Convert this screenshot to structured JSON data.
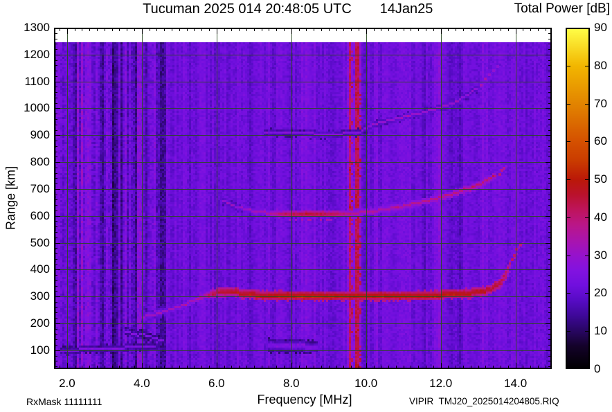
{
  "header": {
    "title": "Tucuman 2025 014 20:48:05 UTC",
    "date_label": "14Jan25",
    "colorbar_title": "Total Power [dB]"
  },
  "footer": {
    "rx_mask": "RxMask 11111111",
    "file_label": "VIPIR  TMJ20_2025014204805.RIQ"
  },
  "chart_data": {
    "type": "heatmap",
    "title": "Tucuman 2025 014 20:48:05 UTC  14Jan25",
    "xlabel": "Frequency [MHz]",
    "ylabel": "Range [km]",
    "colorbar_label": "Total Power [dB]",
    "xlim": [
      1.65,
      14.97
    ],
    "ylim": [
      30,
      1300
    ],
    "x_major_ticks": [
      2,
      4,
      6,
      8,
      10,
      12,
      14
    ],
    "x_tick_labels": [
      "2.0",
      "4.0",
      "6.0",
      "8.0",
      "10.0",
      "12.0",
      "14.0"
    ],
    "x_minor_step": 0.2,
    "y_major_ticks": [
      100,
      200,
      300,
      400,
      500,
      600,
      700,
      800,
      900,
      1000,
      1100,
      1200,
      1300
    ],
    "y_tick_labels": [
      "100",
      "200",
      "300",
      "400",
      "500",
      "600",
      "700",
      "800",
      "900",
      "1000",
      "1100",
      "1200",
      "1300"
    ],
    "y_minor_step": 20,
    "grid": true,
    "grid_color": "#2a4a22",
    "data_top_km": 1245,
    "colorbar": {
      "lim": [
        0,
        90
      ],
      "ticks": [
        0,
        10,
        20,
        30,
        40,
        50,
        60,
        70,
        80,
        90
      ],
      "tick_labels": [
        "0",
        "10",
        "20",
        "30",
        "40",
        "50",
        "60",
        "70",
        "80",
        "90"
      ]
    },
    "colormap_stops": [
      [
        0,
        0,
        0,
        0
      ],
      [
        6,
        20,
        2,
        42
      ],
      [
        10,
        40,
        6,
        98
      ],
      [
        14,
        62,
        8,
        152
      ],
      [
        18,
        86,
        11,
        196
      ],
      [
        22,
        112,
        15,
        222
      ],
      [
        26,
        130,
        18,
        224
      ],
      [
        30,
        150,
        18,
        204
      ],
      [
        34,
        170,
        20,
        172
      ],
      [
        38,
        186,
        22,
        136
      ],
      [
        42,
        190,
        20,
        92
      ],
      [
        46,
        186,
        18,
        44
      ],
      [
        50,
        186,
        24,
        8
      ],
      [
        55,
        202,
        60,
        0
      ],
      [
        60,
        212,
        80,
        0
      ],
      [
        70,
        226,
        132,
        0
      ],
      [
        80,
        242,
        182,
        0
      ],
      [
        90,
        255,
        255,
        72
      ]
    ],
    "noise": {
      "base_db": 21.5,
      "cell_jitter_db": 4.6,
      "column_jitter_db": 2.2,
      "left_noisy_band": {
        "from_mhz": 1.65,
        "to_mhz": 4.65,
        "extra_column_jitter_db": 6.5,
        "extra_cell_jitter_db": 2.0
      }
    },
    "vertical_bands": [
      [
        2.3,
        0.07,
        2
      ],
      [
        2.56,
        0.06,
        3
      ],
      [
        2.74,
        0.06,
        2.5
      ],
      [
        3.0,
        0.07,
        -3
      ],
      [
        3.22,
        0.08,
        -3.5
      ],
      [
        3.45,
        0.07,
        -3
      ],
      [
        3.65,
        0.08,
        -3.5
      ],
      [
        3.85,
        0.07,
        -3
      ],
      [
        4.05,
        0.08,
        -3.5
      ],
      [
        4.25,
        0.07,
        -3
      ],
      [
        4.45,
        0.08,
        -3
      ],
      [
        5.3,
        0.06,
        -2
      ],
      [
        5.65,
        0.06,
        2
      ],
      [
        6.35,
        0.06,
        -2
      ],
      [
        6.9,
        0.07,
        -2.5
      ],
      [
        7.35,
        0.06,
        2
      ],
      [
        8.35,
        0.07,
        3
      ],
      [
        8.62,
        0.06,
        2.5
      ],
      [
        9.05,
        0.06,
        -2
      ],
      [
        9.45,
        0.06,
        2
      ],
      [
        9.97,
        0.08,
        -3.5
      ],
      [
        10.28,
        0.07,
        3
      ],
      [
        10.58,
        0.07,
        2.5
      ],
      [
        11.15,
        0.07,
        2.5
      ],
      [
        11.55,
        0.06,
        -2
      ],
      [
        11.92,
        0.12,
        3.5
      ],
      [
        12.1,
        0.07,
        3
      ],
      [
        12.32,
        0.08,
        -3.5
      ],
      [
        12.52,
        0.07,
        -2.5
      ],
      [
        12.68,
        0.06,
        2.5
      ],
      [
        13.17,
        0.08,
        3.5
      ],
      [
        13.52,
        0.06,
        2.5
      ],
      [
        13.72,
        0.06,
        2.5
      ],
      [
        13.92,
        0.06,
        2.5
      ],
      [
        14.35,
        0.07,
        -2
      ],
      [
        14.7,
        0.06,
        2
      ]
    ],
    "interference_lines": [
      {
        "mhz": 9.62,
        "width_mhz": 0.055,
        "db": 41
      },
      {
        "mhz": 9.79,
        "width_mhz": 0.075,
        "db": 43
      }
    ],
    "traces": [
      {
        "name": "F-region-echo-1st-hop",
        "points": [
          [
            4.0,
            220,
            32,
            5
          ],
          [
            4.5,
            237,
            33,
            5
          ],
          [
            5.0,
            259,
            34,
            6
          ],
          [
            5.35,
            280,
            35,
            6
          ],
          [
            5.65,
            299,
            38,
            7
          ],
          [
            5.9,
            312,
            44,
            8
          ],
          [
            6.15,
            318,
            47,
            9
          ],
          [
            6.5,
            315,
            49,
            9
          ],
          [
            7.0,
            306,
            50,
            9
          ],
          [
            7.6,
            302,
            52,
            9
          ],
          [
            8.4,
            300,
            53,
            10
          ],
          [
            9.3,
            300,
            52,
            10
          ],
          [
            9.9,
            301,
            52,
            9
          ],
          [
            10.8,
            301,
            52,
            9
          ],
          [
            11.6,
            303,
            52,
            9
          ],
          [
            12.3,
            307,
            51,
            9
          ],
          [
            12.8,
            312,
            50,
            9
          ],
          [
            13.15,
            320,
            49,
            8
          ],
          [
            13.4,
            331,
            48,
            8
          ],
          [
            13.58,
            348,
            47,
            8
          ],
          [
            13.7,
            370,
            45,
            7
          ],
          [
            13.79,
            396,
            43,
            7
          ],
          [
            13.85,
            418,
            42,
            6
          ]
        ],
        "dots": [
          [
            13.91,
            438,
            41
          ],
          [
            13.97,
            456,
            40
          ],
          [
            14.04,
            474,
            39
          ],
          [
            14.12,
            492,
            38
          ]
        ]
      },
      {
        "name": "F-region-echo-2nd-hop",
        "points": [
          [
            6.2,
            652,
            29,
            5
          ],
          [
            6.6,
            630,
            31,
            5
          ],
          [
            7.0,
            616,
            33,
            6
          ],
          [
            7.4,
            608,
            37,
            6
          ],
          [
            7.8,
            604,
            44,
            7
          ],
          [
            8.3,
            602,
            47,
            7
          ],
          [
            8.8,
            603,
            47,
            7
          ],
          [
            9.2,
            604,
            44,
            7
          ],
          [
            9.6,
            607,
            40,
            6
          ],
          [
            10.0,
            612,
            38,
            6
          ],
          [
            10.5,
            621,
            37,
            6
          ],
          [
            11.0,
            634,
            38,
            6
          ],
          [
            11.5,
            649,
            39,
            6
          ],
          [
            12.0,
            666,
            40,
            6
          ],
          [
            12.5,
            688,
            40,
            6
          ],
          [
            12.9,
            708,
            41,
            6
          ],
          [
            13.2,
            726,
            41,
            6
          ],
          [
            13.45,
            746,
            40,
            5
          ]
        ],
        "dots": [
          [
            13.55,
            758,
            39
          ],
          [
            13.63,
            768,
            38
          ],
          [
            13.7,
            776,
            36
          ]
        ]
      },
      {
        "name": "F-region-echo-3rd-hop",
        "points": [
          [
            7.3,
            910,
            26,
            5
          ],
          [
            7.9,
            906,
            27,
            5
          ],
          [
            8.5,
            904,
            28,
            6
          ],
          [
            9.0,
            903,
            29,
            6
          ],
          [
            9.5,
            905,
            28,
            5
          ],
          [
            9.85,
            910,
            27,
            5
          ],
          [
            10.15,
            935,
            29,
            5
          ],
          [
            10.6,
            953,
            30,
            5
          ],
          [
            11.1,
            970,
            31,
            5
          ],
          [
            11.6,
            986,
            31,
            5
          ],
          [
            12.0,
            1002,
            31,
            5
          ],
          [
            12.35,
            1020,
            30,
            5
          ],
          [
            12.7,
            1046,
            29,
            5
          ],
          [
            12.95,
            1072,
            29,
            4
          ]
        ],
        "dots": [
          [
            13.05,
            1090,
            33
          ],
          [
            13.17,
            1108,
            34
          ],
          [
            13.28,
            1124,
            30
          ],
          [
            13.4,
            1142,
            29
          ],
          [
            13.5,
            1158,
            28
          ]
        ]
      },
      {
        "name": "low-range-faint-echo",
        "points": [
          [
            1.85,
            97,
            25,
            3
          ],
          [
            2.5,
            102,
            26,
            3
          ],
          [
            3.2,
            106,
            26,
            3
          ],
          [
            3.8,
            110,
            26,
            3
          ],
          [
            4.35,
            114,
            25,
            3
          ]
        ],
        "dots": []
      },
      {
        "name": "sporadic-faint-arc-a",
        "points": [
          [
            3.55,
            172,
            26,
            3
          ],
          [
            3.85,
            156,
            27,
            3
          ],
          [
            4.15,
            142,
            27,
            3
          ],
          [
            4.45,
            130,
            26,
            3
          ]
        ],
        "dots": []
      },
      {
        "name": "sporadic-faint-arc-b",
        "points": [
          [
            3.95,
            163,
            25,
            2
          ],
          [
            4.25,
            148,
            25,
            2
          ],
          [
            4.55,
            135,
            25,
            2
          ]
        ],
        "dots": []
      },
      {
        "name": "e-region-faint-patch",
        "points": [
          [
            7.4,
            118,
            24.5,
            16
          ],
          [
            8.0,
            115,
            25.5,
            17
          ],
          [
            8.7,
            112,
            24.5,
            15
          ]
        ],
        "dots": []
      }
    ]
  }
}
